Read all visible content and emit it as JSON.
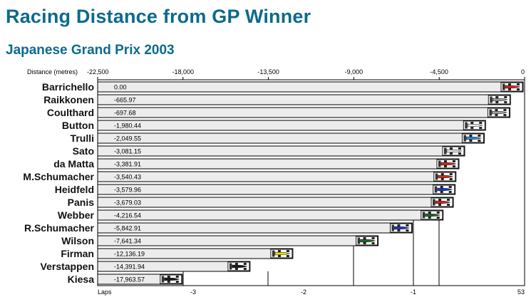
{
  "page": {
    "title": "Racing Distance from GP Winner",
    "subtitle": "Japanese Grand Prix 2003"
  },
  "chart_data": {
    "type": "bar",
    "orientation": "horizontal",
    "title": "Racing Distance from GP Winner",
    "subtitle": "Japanese Grand Prix 2003",
    "top_axis": {
      "label": "Distance (metres)",
      "range": [
        -22500,
        0
      ],
      "ticks": [
        {
          "value": -22500,
          "label": "-22,500"
        },
        {
          "value": -18000,
          "label": "-18,000"
        },
        {
          "value": -13500,
          "label": "-13,500"
        },
        {
          "value": -9000,
          "label": "-9,000"
        },
        {
          "value": -4500,
          "label": "-4,500"
        },
        {
          "value": 0,
          "label": "0"
        }
      ]
    },
    "bottom_axis": {
      "label": "Laps",
      "ticks": [
        {
          "value": -3,
          "label": "-3"
        },
        {
          "value": -2,
          "label": "-2"
        },
        {
          "value": -1,
          "label": "-1"
        },
        {
          "value": 0,
          "label": "53"
        }
      ]
    },
    "categories": [
      "Barrichello",
      "Raikkonen",
      "Coulthard",
      "Button",
      "Trulli",
      "Sato",
      "da Matta",
      "M.Schumacher",
      "Heidfeld",
      "Panis",
      "Webber",
      "R.Schumacher",
      "Wilson",
      "Firman",
      "Verstappen",
      "Kiesa"
    ],
    "values": [
      0.0,
      -665.97,
      -697.68,
      -1980.44,
      -2049.55,
      -3081.15,
      -3381.91,
      -3540.43,
      -3579.96,
      -3679.03,
      -4216.54,
      -5842.91,
      -7641.34,
      -12136.19,
      -14391.94,
      -17963.57
    ],
    "value_labels": [
      "0.00",
      "-665.97",
      "-697.68",
      "-1,980.44",
      "-2,049.55",
      "-3,081.15",
      "-3,381.91",
      "-3,540.43",
      "-3,579.96",
      "-3,679.03",
      "-4,216.54",
      "-5,842.91",
      "-7,641.34",
      "-12,136.19",
      "-14,391.94",
      "-17,963.57"
    ],
    "lap_markers": [
      -1,
      -2,
      -3
    ],
    "car_colors": [
      "#d8261c",
      "#9aa0a8",
      "#9aa0a8",
      "#e8e8e8",
      "#2c8ad8",
      "#e8e8e8",
      "#d8261c",
      "#d8261c",
      "#1a3cc0",
      "#d8261c",
      "#1c6a2c",
      "#1a3cc0",
      "#1c6a2c",
      "#f0e000",
      "#1a1a1a",
      "#1a1a1a"
    ],
    "grid": true,
    "colors": {
      "bar_fill": "#ececec",
      "bar_stroke": "#000000",
      "title": "#0c6a8c"
    }
  }
}
